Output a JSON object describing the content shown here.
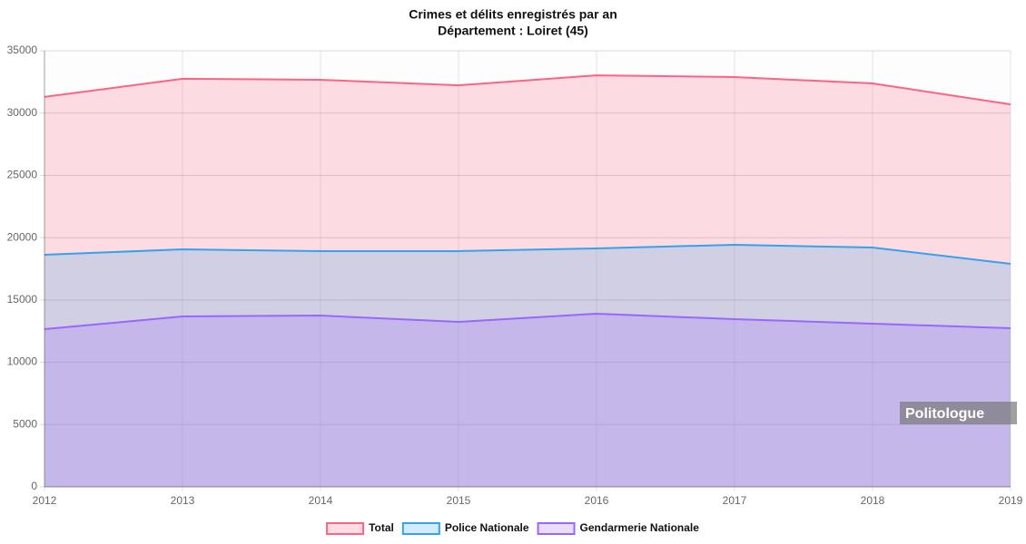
{
  "chart_data": {
    "type": "area",
    "title": "Crimes et délits enregistrés par an",
    "subtitle": "Département : Loiret (45)",
    "categories": [
      "2012",
      "2013",
      "2014",
      "2015",
      "2016",
      "2017",
      "2018",
      "2019"
    ],
    "series": [
      {
        "name": "Total",
        "color": "#ff6384",
        "values": [
          31300,
          32750,
          32670,
          32230,
          33030,
          32890,
          32380,
          30700
        ]
      },
      {
        "name": "Police Nationale",
        "color": "#36a2eb",
        "values": [
          18630,
          19060,
          18920,
          18920,
          19140,
          19430,
          19210,
          17900
        ]
      },
      {
        "name": "Gendarmerie Nationale",
        "color": "#9966ff",
        "values": [
          12660,
          13680,
          13750,
          13240,
          13900,
          13460,
          13100,
          12730
        ]
      }
    ],
    "ylim": [
      0,
      35000
    ],
    "yticks": [
      0,
      5000,
      10000,
      15000,
      20000,
      25000,
      30000,
      35000
    ],
    "grid": true,
    "legend": "bottom",
    "watermark": "Politologue"
  }
}
